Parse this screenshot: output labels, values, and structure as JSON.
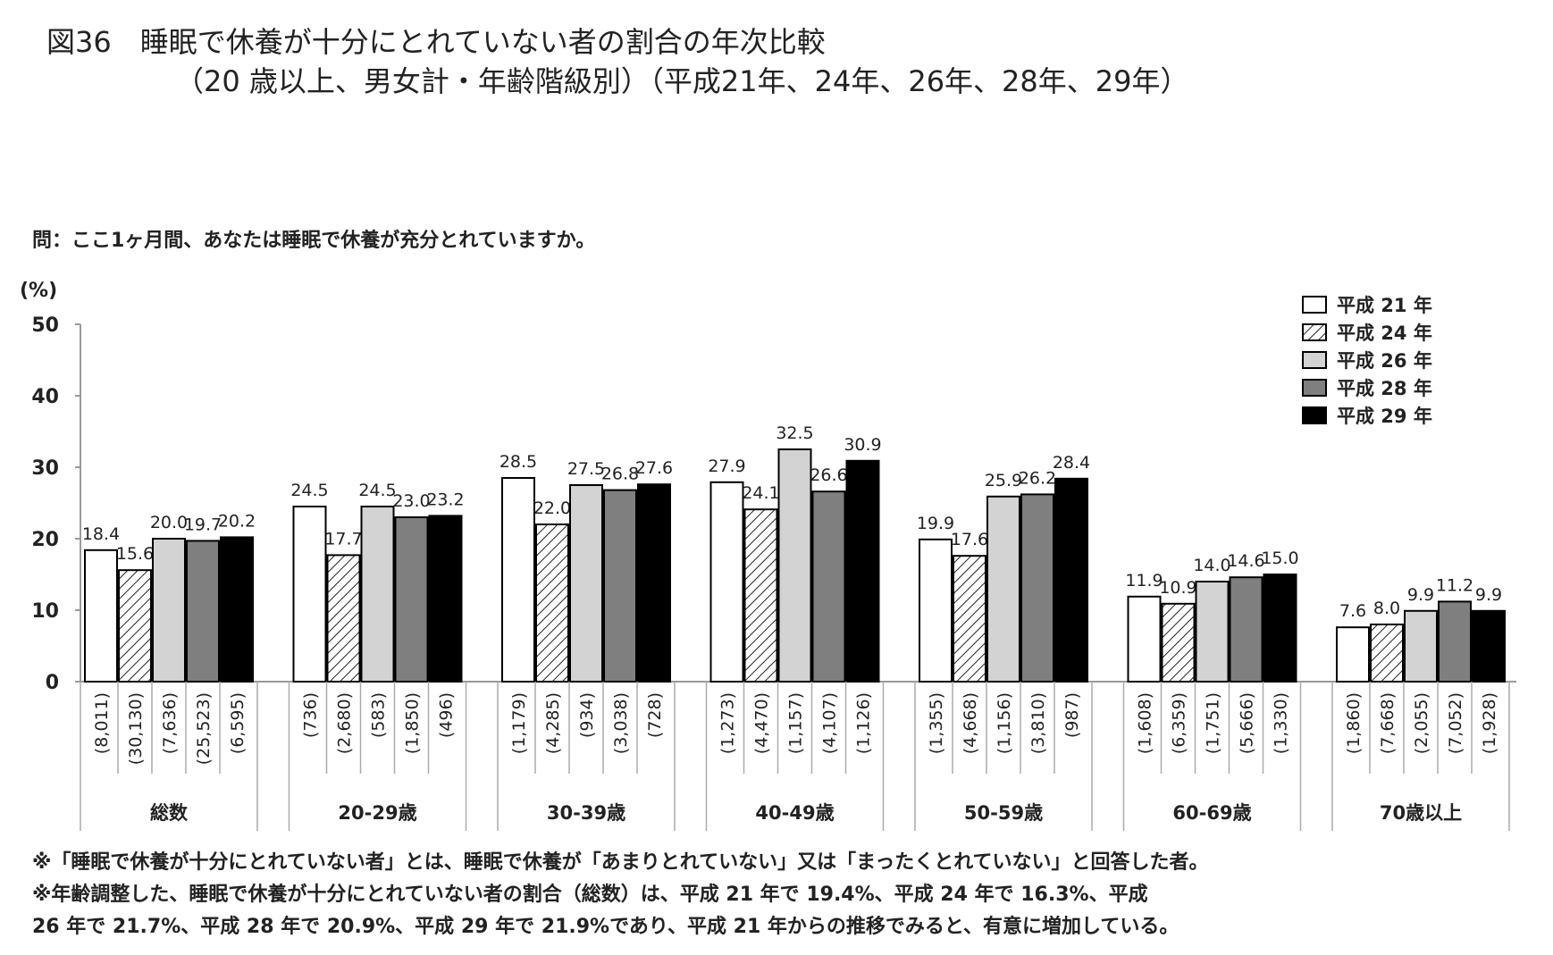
{
  "title_line1": "図36　睡眠で休養が十分にとれていない者の割合の年次比較",
  "title_line2": "（20 歳以上、男女計・年齢階級別）（平成21年、24年、26年、28年、29年）",
  "question": "問：ここ1ヶ月間、あなたは睡眠で休養が充分とれていますか。",
  "footnotes": [
    "※「睡眠で休養が十分にとれていない者」とは、睡眠で休養が「あまりとれていない」又は「まったくとれていない」と回答した者。",
    "※年齢調整した、睡眠で休養が十分にとれていない者の割合（総数）は、平成 21 年で 19.4%、平成 24 年で 16.3%、平成",
    "26 年で 21.7%、平成 28 年で 20.9%、平成 29 年で 21.9%であり、平成 21 年からの推移でみると、有意に増加している。"
  ],
  "chart_data": {
    "type": "bar",
    "title": "睡眠で休養が十分にとれていない者の割合の年次比較",
    "ylabel": "(%)",
    "ylim": [
      0,
      50
    ],
    "yticks": [
      "0",
      "10",
      "20",
      "30",
      "40",
      "50"
    ],
    "legend_position": "top-right",
    "categories": [
      "総数",
      "20-29歳",
      "30-39歳",
      "40-49歳",
      "50-59歳",
      "60-69歳",
      "70歳以上"
    ],
    "series": [
      {
        "name": "平成 21 年",
        "color": "#ffffff",
        "pattern": "none",
        "values": [
          18.4,
          24.5,
          28.5,
          27.9,
          19.9,
          11.9,
          7.6
        ],
        "labels": [
          "18.4",
          "24.5",
          "28.5",
          "27.9",
          "19.9",
          "11.9",
          "7.6"
        ],
        "n": [
          "(8,011)",
          "(736)",
          "(1,179)",
          "(1,273)",
          "(1,355)",
          "(1,608)",
          "(1,860)"
        ]
      },
      {
        "name": "平成 24 年",
        "color": "#ffffff",
        "pattern": "hatch",
        "values": [
          15.6,
          17.7,
          22.0,
          24.1,
          17.6,
          10.9,
          8.0
        ],
        "labels": [
          "15.6",
          "17.7",
          "22.0",
          "24.1",
          "17.6",
          "10.9",
          "8.0"
        ],
        "n": [
          "(30,130)",
          "(2,680)",
          "(4,285)",
          "(4,470)",
          "(4,668)",
          "(6,359)",
          "(7,668)"
        ]
      },
      {
        "name": "平成 26 年",
        "color": "#d3d3d3",
        "pattern": "none",
        "values": [
          20.0,
          24.5,
          27.5,
          32.5,
          25.9,
          14.0,
          9.9
        ],
        "labels": [
          "20.0",
          "24.5",
          "27.5",
          "32.5",
          "25.9",
          "14.0",
          "9.9"
        ],
        "n": [
          "(7,636)",
          "(583)",
          "(934)",
          "(1,157)",
          "(1,156)",
          "(1,751)",
          "(2,055)"
        ]
      },
      {
        "name": "平成 28 年",
        "color": "#7f7f7f",
        "pattern": "none",
        "values": [
          19.7,
          23.0,
          26.8,
          26.6,
          26.2,
          14.6,
          11.2
        ],
        "labels": [
          "19.7",
          "23.0",
          "26.8",
          "26.6",
          "26.2",
          "14.6",
          "11.2"
        ],
        "n": [
          "(25,523)",
          "(1,850)",
          "(3,038)",
          "(4,107)",
          "(3,810)",
          "(5,666)",
          "(7,052)"
        ]
      },
      {
        "name": "平成 29 年",
        "color": "#000000",
        "pattern": "none",
        "values": [
          20.2,
          23.2,
          27.6,
          30.9,
          28.4,
          15.0,
          9.9
        ],
        "labels": [
          "20.2",
          "23.2",
          "27.6",
          "30.9",
          "28.4",
          "15.0",
          "9.9"
        ],
        "n": [
          "(6,595)",
          "(496)",
          "(728)",
          "(1,126)",
          "(987)",
          "(1,330)",
          "(1,928)"
        ]
      }
    ]
  }
}
